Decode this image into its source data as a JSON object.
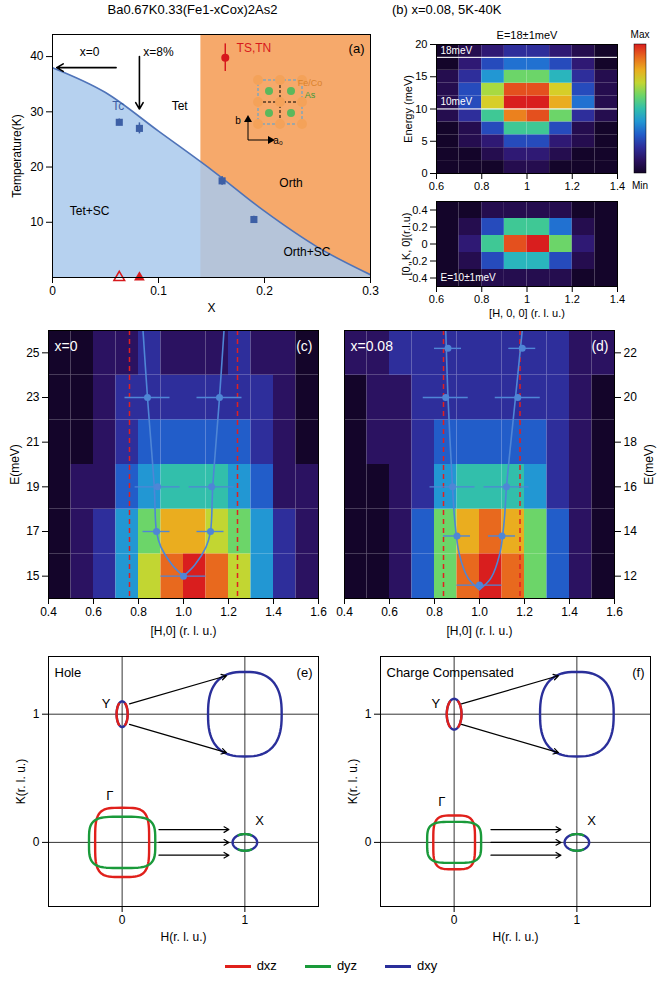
{
  "chart_data": [
    {
      "type": "line",
      "panel_label": "(a)",
      "title": "Ba0.67K0.33(Fe1-xCox)2As2",
      "x_label": "X",
      "y_label": "Temperature(K)",
      "xlim": [
        0,
        0.3
      ],
      "ylim": [
        0,
        44
      ],
      "xticks": [
        0,
        0.1,
        0.2,
        0.3
      ],
      "yticks": [
        10,
        20,
        30,
        40
      ],
      "series": [
        {
          "name": "Tc",
          "color": "#4f73b8",
          "x": [
            0,
            0.05,
            0.1,
            0.15,
            0.2,
            0.25,
            0.3
          ],
          "values": [
            38,
            33.5,
            26.5,
            19.5,
            12,
            5.5,
            0.5
          ]
        }
      ],
      "points": [
        {
          "name": "Tc",
          "color": "#3d5fa5",
          "marker": "square",
          "x": [
            0.063,
            0.082,
            0.16,
            0.19
          ],
          "values": [
            28.1,
            27,
            17.5,
            10.5
          ],
          "errors": [
            0.6,
            1,
            0.8,
            0.6
          ]
        },
        {
          "name": "TS,TN",
          "color": "#d7191c",
          "marker": "circle",
          "x": [
            0.163
          ],
          "values": [
            39.8
          ],
          "errors": [
            2.5
          ]
        }
      ],
      "samples": {
        "color": "#d7191c",
        "x": [
          0.063,
          0.082
        ],
        "values": [
          0,
          0
        ],
        "markers": [
          "triangle-open",
          "triangle"
        ]
      },
      "orth_region": [
        0.14,
        0.3
      ],
      "annotations": [
        {
          "text": "Tet",
          "x": 0.12,
          "y": 31
        },
        {
          "text": "Orth",
          "x": 0.225,
          "y": 17
        },
        {
          "text": "Tet+SC",
          "x": 0.035,
          "y": 12
        },
        {
          "text": "Orth+SC",
          "x": 0.24,
          "y": 4.5
        },
        {
          "text": "Tc",
          "x": 0.062,
          "y": 31
        },
        {
          "text": "TS,TN",
          "x": 0.19,
          "y": 41.5
        },
        {
          "text": "x=0",
          "x": 0.035,
          "y": 40.8
        },
        {
          "text": "x=8%",
          "x": 0.1,
          "y": 40.8
        }
      ],
      "arrows": [
        {
          "x1": 0.06,
          "y1": 38,
          "x2": 0.004,
          "y2": 38
        },
        {
          "x1": 0.082,
          "y1": 40,
          "x2": 0.082,
          "y2": 30.5
        }
      ],
      "inset_labels": [
        "Fe/Co",
        "As",
        "b",
        "a₀"
      ]
    },
    {
      "type": "heatmap",
      "panel_label": "(b)",
      "title": "x=0.08, 5K-40K",
      "x_label": "[H, 0, 0] (r. l. u.)",
      "y_label": "Energy (meV)",
      "xlim": [
        0.6,
        1.4
      ],
      "ylim": [
        0,
        20
      ],
      "xticks": [
        0.6,
        0.8,
        1,
        1.2,
        1.4
      ],
      "yticks": [
        0,
        5,
        10,
        15,
        20
      ],
      "x_bins": [
        0.6,
        0.7,
        0.8,
        0.9,
        1.0,
        1.1,
        1.2,
        1.3,
        1.4
      ],
      "y_bins": [
        0,
        2,
        4,
        6,
        8,
        10,
        12,
        14,
        16,
        18,
        20
      ],
      "cells": [
        [
          0,
          0,
          0,
          1,
          1,
          0,
          0,
          0
        ],
        [
          0,
          0,
          1,
          2,
          2,
          1,
          0,
          0
        ],
        [
          0,
          1,
          2,
          4,
          4,
          2,
          1,
          0
        ],
        [
          0,
          1,
          4,
          8,
          8,
          4,
          1,
          0
        ],
        [
          1,
          3,
          8,
          13,
          14,
          9,
          3,
          1
        ],
        [
          1,
          4,
          11,
          15,
          15,
          12,
          5,
          1
        ],
        [
          1,
          4,
          10,
          14,
          14,
          11,
          4,
          1
        ],
        [
          1,
          3,
          6,
          9,
          9,
          7,
          3,
          1
        ],
        [
          0,
          2,
          4,
          5,
          5,
          4,
          2,
          0
        ],
        [
          0,
          1,
          2,
          3,
          3,
          2,
          1,
          0
        ]
      ],
      "color_range": [
        0,
        15
      ],
      "colorbar_labels": [
        "Min",
        "Max"
      ],
      "slices": [
        {
          "value": 18,
          "label": "18meV",
          "title": "E=18±1meV"
        },
        {
          "value": 10,
          "label": "10meV",
          "title": "E=10±1meV"
        }
      ],
      "slice_map": {
        "y_label": "[0, K, 0](r.l.u)",
        "ylim": [
          -0.5,
          0.5
        ],
        "yticks": [
          -0.4,
          -0.2,
          0,
          0.2,
          0.4
        ],
        "y_bins": [
          -0.5,
          -0.3,
          -0.1,
          0.1,
          0.3,
          0.5
        ],
        "cells": [
          [
            0,
            0,
            1,
            1,
            1,
            1,
            0,
            0
          ],
          [
            0,
            1,
            4,
            7,
            7,
            4,
            1,
            0
          ],
          [
            0,
            2,
            8,
            14,
            15,
            9,
            2,
            0
          ],
          [
            0,
            1,
            4,
            8,
            8,
            5,
            1,
            0
          ],
          [
            0,
            0,
            1,
            1,
            1,
            1,
            0,
            0
          ]
        ]
      }
    },
    {
      "type": "heatmap",
      "panel_label": "(c)",
      "title": "x=0",
      "x_label": "[H,0] (r. l. u.)",
      "y_label": "E(meV)",
      "xlim": [
        0.4,
        1.6
      ],
      "ylim": [
        14,
        26
      ],
      "xticks": [
        0.4,
        0.6,
        0.8,
        {
          "value": 1,
          "label": "1.0"
        },
        1.2,
        1.4,
        1.6
      ],
      "yticks": [
        15,
        17,
        19,
        21,
        23,
        25
      ],
      "x_bins": [
        0.4,
        0.5,
        0.6,
        0.7,
        0.8,
        0.9,
        1.0,
        1.1,
        1.2,
        1.3,
        1.4,
        1.5,
        1.6
      ],
      "y_bins": [
        14,
        16,
        18,
        20,
        22,
        24,
        26
      ],
      "cells": [
        [
          0,
          1,
          2,
          4,
          7,
          9,
          10,
          9,
          7,
          4,
          2,
          1
        ],
        [
          0,
          1,
          2,
          4,
          6,
          8,
          8,
          7,
          6,
          4,
          2,
          1
        ],
        [
          0,
          1,
          1,
          3,
          4,
          5,
          5,
          5,
          4,
          3,
          1,
          1
        ],
        [
          0,
          0,
          1,
          2,
          3,
          3,
          3,
          3,
          3,
          2,
          1,
          0
        ],
        [
          0,
          0,
          1,
          2,
          2,
          2,
          2,
          2,
          2,
          2,
          1,
          0
        ],
        [
          0,
          0,
          1,
          1,
          2,
          1,
          1,
          1,
          2,
          1,
          1,
          0
        ]
      ],
      "color_range": [
        0,
        10
      ],
      "points": {
        "color": "#4f86d6",
        "x": [
          1.0,
          0.88,
          1.12,
          0.885,
          1.125,
          0.84,
          1.16
        ],
        "values": [
          15,
          17,
          17,
          19,
          19,
          23,
          23
        ],
        "errors": [
          0.1,
          0.06,
          0.06,
          0.1,
          0.1,
          0.1,
          0.1
        ]
      },
      "curves": {
        "color": "#4f86d6",
        "lines": [
          {
            "x": [
              1.0,
              0.95,
              0.9,
              0.88,
              0.87,
              0.84,
              0.82
            ],
            "values": [
              15,
              15.5,
              16.3,
              17,
              19,
              23,
              26
            ]
          },
          {
            "x": [
              1.0,
              1.05,
              1.1,
              1.12,
              1.13,
              1.16,
              1.18
            ],
            "values": [
              15,
              15.5,
              16.3,
              17,
              19,
              23,
              26
            ]
          }
        ]
      },
      "guides": {
        "x": [
          0.76,
          1.24
        ],
        "color": "#e02020",
        "line_style": "dashed"
      }
    },
    {
      "type": "heatmap",
      "panel_label": "(d)",
      "title": "x=0.08",
      "x_label": "[H,0] (r. l. u.)",
      "y_label": "E(meV)",
      "xlim": [
        0.4,
        1.6
      ],
      "ylim": [
        11,
        23
      ],
      "xticks": [
        0.4,
        0.6,
        0.8,
        {
          "value": 1,
          "label": "1.0"
        },
        1.2,
        1.4,
        1.6
      ],
      "yticks": [
        12,
        14,
        16,
        18,
        20,
        22
      ],
      "x_bins": [
        0.4,
        0.5,
        0.6,
        0.7,
        0.8,
        0.9,
        1.0,
        1.1,
        1.2,
        1.3,
        1.4,
        1.5,
        1.6
      ],
      "y_bins": [
        11,
        13,
        15,
        17,
        19,
        21,
        23
      ],
      "cells": [
        [
          0,
          0,
          1,
          3,
          6,
          9,
          10,
          9,
          6,
          3,
          1,
          0
        ],
        [
          0,
          0,
          1,
          3,
          6,
          8,
          9,
          8,
          6,
          3,
          1,
          0
        ],
        [
          0,
          0,
          1,
          2,
          4,
          5,
          5,
          5,
          4,
          2,
          1,
          0
        ],
        [
          0,
          1,
          1,
          2,
          3,
          3,
          3,
          3,
          3,
          2,
          1,
          0
        ],
        [
          0,
          1,
          1,
          2,
          2,
          2,
          2,
          2,
          2,
          2,
          1,
          0
        ],
        [
          1,
          1,
          2,
          2,
          2,
          2,
          2,
          2,
          2,
          2,
          1,
          1
        ]
      ],
      "color_range": [
        0,
        10
      ],
      "points": {
        "color": "#4f86d6",
        "x": [
          1.0,
          0.9,
          1.1,
          0.88,
          1.12,
          0.85,
          1.17,
          0.86,
          1.19
        ],
        "values": [
          11.6,
          13.8,
          13.8,
          16,
          16,
          20,
          20,
          22.2,
          22.2
        ],
        "errors": [
          0.1,
          0.06,
          0.06,
          0.1,
          0.1,
          0.1,
          0.1,
          0.06,
          0.06
        ]
      },
      "curves": {
        "color": "#4f86d6",
        "lines": [
          {
            "x": [
              1.0,
              0.95,
              0.91,
              0.89,
              0.88,
              0.86,
              0.85
            ],
            "values": [
              11.4,
              11.9,
              13,
              14.5,
              16,
              20,
              23
            ]
          },
          {
            "x": [
              1.0,
              1.05,
              1.09,
              1.11,
              1.12,
              1.16,
              1.19
            ],
            "values": [
              11.4,
              11.9,
              13,
              14.5,
              16,
              20,
              23
            ]
          }
        ]
      },
      "guides": {
        "x": [
          0.84,
          1.18
        ],
        "color": "#e02020",
        "line_style": "dashed"
      }
    },
    {
      "type": "diagram",
      "panel_label": "(e)",
      "title": "Hole",
      "x_label": "H(r. l. u.)",
      "y_label": "K(r. l. u.)",
      "xlim": [
        -0.6,
        1.6
      ],
      "ylim": [
        -0.5,
        1.45
      ],
      "xticks": [
        0,
        1
      ],
      "yticks": [
        0,
        1
      ],
      "grid": true,
      "labels": [
        {
          "text": "Γ",
          "x": -0.1,
          "y": 0.36
        },
        {
          "text": "X",
          "x": 1.12,
          "y": 0.17
        },
        {
          "text": "Y",
          "x": -0.13,
          "y": 1.08
        }
      ]
    },
    {
      "type": "diagram",
      "panel_label": "(f)",
      "title": "Charge Compensated",
      "x_label": "H(r. l. u.)",
      "y_label": "K(r. l. u.)",
      "xlim": [
        -0.6,
        1.6
      ],
      "ylim": [
        -0.5,
        1.45
      ],
      "xticks": [
        0,
        1
      ],
      "yticks": [
        0,
        1
      ],
      "grid": true,
      "labels": [
        {
          "text": "Γ",
          "x": -0.1,
          "y": 0.32
        },
        {
          "text": "X",
          "x": 1.12,
          "y": 0.17
        },
        {
          "text": "Y",
          "x": -0.15,
          "y": 1.08
        }
      ],
      "legend": "bottom",
      "orbitals": [
        {
          "name": "dxz",
          "color": "#e0201b"
        },
        {
          "name": "dyz",
          "color": "#1a9a3a"
        },
        {
          "name": "dxy",
          "color": "#2a2f9a"
        }
      ]
    }
  ]
}
